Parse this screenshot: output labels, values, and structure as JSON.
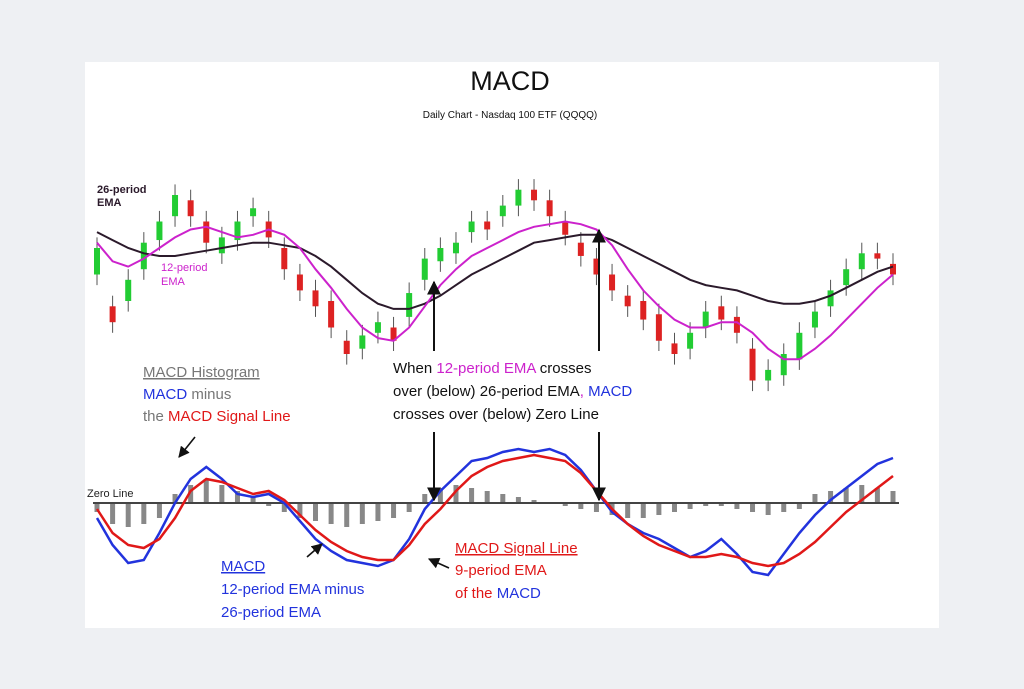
{
  "chart_data": {
    "type": "line",
    "title": "MACD",
    "subtitle": "Daily Chart - Nasdaq 100 ETF (QQQQ)",
    "price_panel": {
      "series": [
        {
          "name": "26-period EMA",
          "label_lines": [
            "26-period",
            "EMA"
          ],
          "color": "#2b1a2b",
          "values": [
            66,
            63,
            60,
            58,
            57,
            57,
            58,
            59,
            60,
            61,
            62,
            62,
            61,
            60,
            57,
            53,
            48,
            43,
            39,
            37,
            37,
            39,
            42,
            46,
            50,
            53,
            56,
            59,
            62,
            63,
            64,
            65,
            65,
            63,
            60,
            57,
            54,
            51,
            48,
            46,
            45,
            44,
            42,
            40,
            39,
            39,
            40,
            42,
            45,
            48,
            51,
            53
          ]
        },
        {
          "name": "12-period EMA",
          "label_lines": [
            "12-period",
            "EMA"
          ],
          "color": "#cc22cc",
          "values": [
            62,
            55,
            53,
            56,
            60,
            64,
            67,
            68,
            66,
            64,
            65,
            67,
            65,
            60,
            52,
            45,
            37,
            30,
            26,
            25,
            30,
            38,
            46,
            52,
            57,
            60,
            63,
            66,
            68,
            69,
            70,
            69,
            67,
            61,
            52,
            44,
            38,
            33,
            30,
            30,
            32,
            32,
            28,
            22,
            18,
            18,
            22,
            27,
            33,
            39,
            45,
            50
          ]
        }
      ],
      "candles": [
        {
          "o": 50,
          "c": 60
        },
        {
          "o": 38,
          "c": 32
        },
        {
          "o": 40,
          "c": 48
        },
        {
          "o": 52,
          "c": 62
        },
        {
          "o": 63,
          "c": 70
        },
        {
          "o": 72,
          "c": 80
        },
        {
          "o": 78,
          "c": 72
        },
        {
          "o": 70,
          "c": 62
        },
        {
          "o": 58,
          "c": 64
        },
        {
          "o": 63,
          "c": 70
        },
        {
          "o": 72,
          "c": 75
        },
        {
          "o": 70,
          "c": 64
        },
        {
          "o": 60,
          "c": 52
        },
        {
          "o": 50,
          "c": 44
        },
        {
          "o": 44,
          "c": 38
        },
        {
          "o": 40,
          "c": 30
        },
        {
          "o": 25,
          "c": 20
        },
        {
          "o": 22,
          "c": 27
        },
        {
          "o": 28,
          "c": 32
        },
        {
          "o": 30,
          "c": 25
        },
        {
          "o": 34,
          "c": 43
        },
        {
          "o": 48,
          "c": 56
        },
        {
          "o": 55,
          "c": 60
        },
        {
          "o": 58,
          "c": 62
        },
        {
          "o": 66,
          "c": 70
        },
        {
          "o": 70,
          "c": 67
        },
        {
          "o": 72,
          "c": 76
        },
        {
          "o": 76,
          "c": 82
        },
        {
          "o": 82,
          "c": 78
        },
        {
          "o": 78,
          "c": 72
        },
        {
          "o": 70,
          "c": 65
        },
        {
          "o": 62,
          "c": 57
        },
        {
          "o": 56,
          "c": 50
        },
        {
          "o": 50,
          "c": 44
        },
        {
          "o": 42,
          "c": 38
        },
        {
          "o": 40,
          "c": 33
        },
        {
          "o": 35,
          "c": 25
        },
        {
          "o": 24,
          "c": 20
        },
        {
          "o": 22,
          "c": 28
        },
        {
          "o": 30,
          "c": 36
        },
        {
          "o": 38,
          "c": 33
        },
        {
          "o": 34,
          "c": 28
        },
        {
          "o": 22,
          "c": 10
        },
        {
          "o": 10,
          "c": 14
        },
        {
          "o": 12,
          "c": 20
        },
        {
          "o": 18,
          "c": 28
        },
        {
          "o": 30,
          "c": 36
        },
        {
          "o": 38,
          "c": 44
        },
        {
          "o": 46,
          "c": 52
        },
        {
          "o": 52,
          "c": 58
        },
        {
          "o": 58,
          "c": 56
        },
        {
          "o": 54,
          "c": 50
        }
      ]
    },
    "macd_panel": {
      "zero_line_label": "Zero Line",
      "histogram": [
        -3,
        -7,
        -8,
        -7,
        -5,
        3,
        6,
        8,
        6,
        4,
        2,
        -1,
        -3,
        -5,
        -6,
        -7,
        -8,
        -7,
        -6,
        -5,
        -3,
        3,
        5,
        6,
        5,
        4,
        3,
        2,
        1,
        0,
        -1,
        -2,
        -3,
        -4,
        -5,
        -5,
        -4,
        -3,
        -2,
        -1,
        -1,
        -2,
        -3,
        -4,
        -3,
        -2,
        3,
        4,
        5,
        6,
        5,
        4
      ],
      "series": [
        {
          "name": "MACD",
          "color": "#2233dd",
          "values": [
            -5,
            -14,
            -20,
            -19,
            -10,
            0,
            8,
            12,
            8,
            3,
            2,
            3,
            0,
            -6,
            -12,
            -16,
            -19,
            -20,
            -21,
            -19,
            -12,
            -2,
            4,
            9,
            14,
            15,
            17,
            18,
            17,
            18,
            16,
            11,
            4,
            -3,
            -7,
            -10,
            -12,
            -15,
            -18,
            -16,
            -12,
            -17,
            -23,
            -24,
            -17,
            -10,
            -4,
            1,
            5,
            9,
            13,
            15
          ]
        },
        {
          "name": "MACD Signal Line",
          "color": "#e01818",
          "values": [
            -2,
            -10,
            -14,
            -15,
            -12,
            -5,
            4,
            8,
            7,
            5,
            3,
            4,
            1,
            -4,
            -9,
            -13,
            -16,
            -18,
            -19,
            -19,
            -14,
            -7,
            -2,
            4,
            9,
            12,
            14,
            15,
            16,
            15,
            14,
            10,
            4,
            -2,
            -7,
            -11,
            -14,
            -16,
            -18,
            -18,
            -17,
            -18,
            -20,
            -21,
            -20,
            -17,
            -13,
            -8,
            -3,
            1,
            5,
            9
          ]
        }
      ]
    }
  },
  "annotations": {
    "histogram_title": "MACD Histogram",
    "histogram_desc_1_a": "MACD",
    "histogram_desc_1_b": " minus",
    "histogram_desc_2_a": "the ",
    "histogram_desc_2_b": "MACD Signal Line",
    "cross_1_a": "When ",
    "cross_1_b": "12-period EMA",
    "cross_1_c": " crosses",
    "cross_2_a": "over (below) 26-period EMA",
    "cross_2_b": ",",
    "cross_2_c": " MACD",
    "cross_3": "crosses over (below) Zero Line",
    "macd_title": "MACD",
    "macd_desc_1": "12-period EMA minus",
    "macd_desc_2": "26-period EMA",
    "signal_title": "MACD Signal Line",
    "signal_desc_1": "9-period EMA",
    "signal_desc_2_a": "of the ",
    "signal_desc_2_b": "MACD"
  },
  "colors": {
    "up": "#22cc33",
    "down": "#dd2222",
    "histogram": "#888888",
    "zero_line": "#444444",
    "annotation_gray": "#777777",
    "annotation_blue": "#2233dd",
    "annotation_red": "#e01818",
    "annotation_magenta": "#cc22cc"
  }
}
